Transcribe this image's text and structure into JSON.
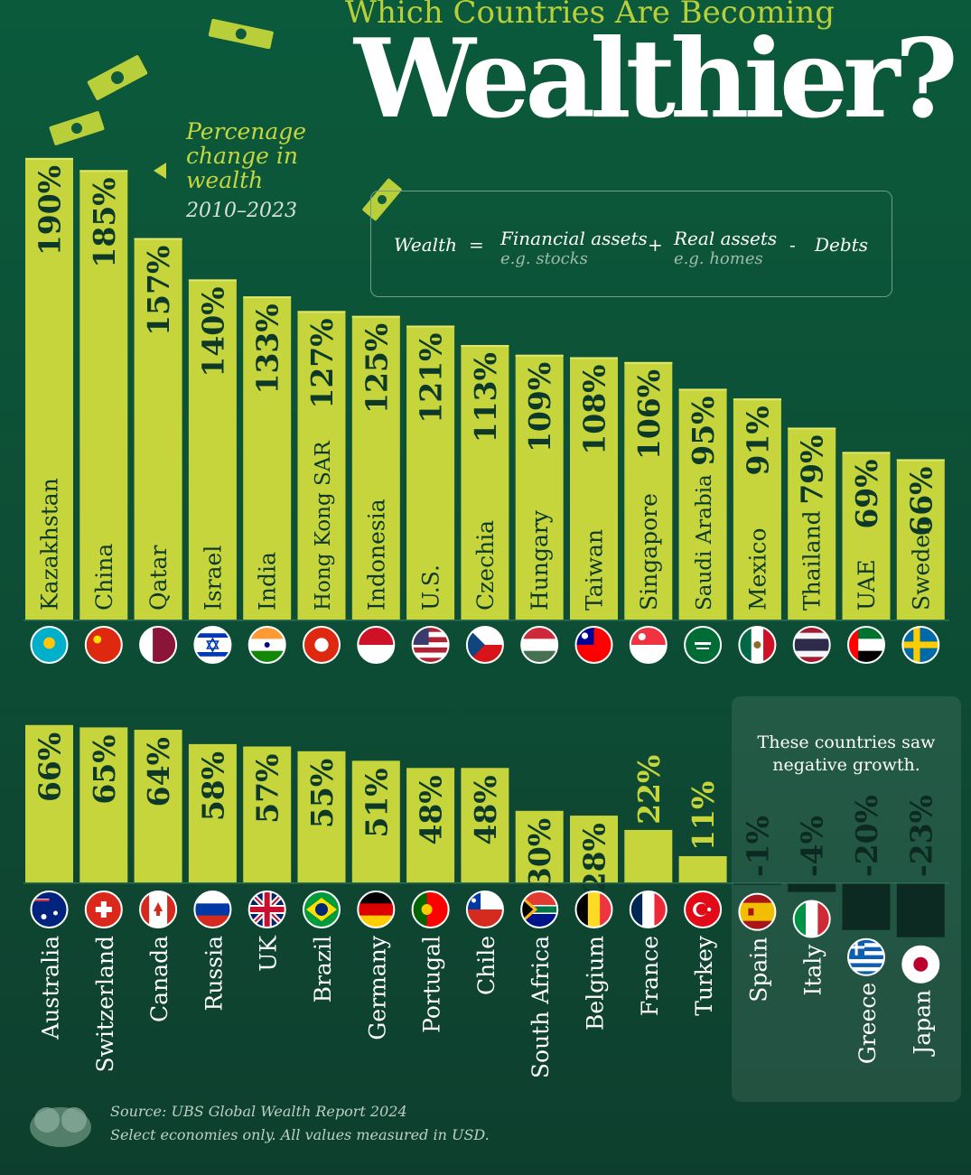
{
  "header": {
    "kicker": "Which Countries Are Becoming",
    "title": "Wealthier?"
  },
  "annotation": {
    "label": "Percenage change in wealth",
    "years": "2010–2023"
  },
  "formula": {
    "wealth": "Wealth",
    "eq": "=",
    "financial": "Financial assets",
    "financial_example": "e.g. stocks",
    "plus": "+",
    "real": "Real assets",
    "real_example": "e.g. homes",
    "minus": "-",
    "debts": "Debts"
  },
  "negative_panel": {
    "text": "These countries saw negative growth."
  },
  "footer": {
    "source": "Source: UBS Global Wealth Report 2024",
    "note": "Select economies only. All values measured in USD."
  },
  "colors": {
    "bar": "#c6d53c",
    "bar_dark": "#a9bb2a",
    "negative_bar": "#0d2a22",
    "background": "#0d4f36"
  },
  "chart_data": [
    {
      "type": "bar",
      "ylabel": "Percenage change in wealth",
      "unit": "%",
      "categories": [
        "Kazakhstan",
        "China",
        "Qatar",
        "Israel",
        "India",
        "Hong Kong SAR",
        "Indonesia",
        "U.S.",
        "Czechia",
        "Hungary",
        "Taiwan",
        "Singapore",
        "Saudi Arabia",
        "Mexico",
        "Thailand",
        "UAE",
        "Sweden"
      ],
      "values": [
        190,
        185,
        157,
        140,
        133,
        127,
        125,
        121,
        113,
        109,
        108,
        106,
        95,
        91,
        79,
        69,
        66
      ],
      "flags": [
        "kazakhstan-flag",
        "china-flag",
        "qatar-flag",
        "israel-flag",
        "india-flag",
        "hong-kong-flag",
        "indonesia-flag",
        "us-flag",
        "czechia-flag",
        "hungary-flag",
        "taiwan-flag",
        "singapore-flag",
        "saudi-arabia-flag",
        "mexico-flag",
        "thailand-flag",
        "uae-flag",
        "sweden-flag"
      ]
    },
    {
      "type": "bar",
      "ylabel": "Percenage change in wealth",
      "unit": "%",
      "categories": [
        "Australia",
        "Switzerland",
        "Canada",
        "Russia",
        "UK",
        "Brazil",
        "Germany",
        "Portugal",
        "Chile",
        "South Africa",
        "Belgium",
        "France",
        "Turkey",
        "Spain",
        "Italy",
        "Greece",
        "Japan"
      ],
      "values": [
        66,
        65,
        64,
        58,
        57,
        55,
        51,
        48,
        48,
        30,
        28,
        22,
        11,
        -1,
        -4,
        -20,
        -23
      ],
      "flags": [
        "australia-flag",
        "switzerland-flag",
        "canada-flag",
        "russia-flag",
        "uk-flag",
        "brazil-flag",
        "germany-flag",
        "portugal-flag",
        "chile-flag",
        "south-africa-flag",
        "belgium-flag",
        "france-flag",
        "turkey-flag",
        "spain-flag",
        "italy-flag",
        "greece-flag",
        "japan-flag"
      ]
    }
  ]
}
